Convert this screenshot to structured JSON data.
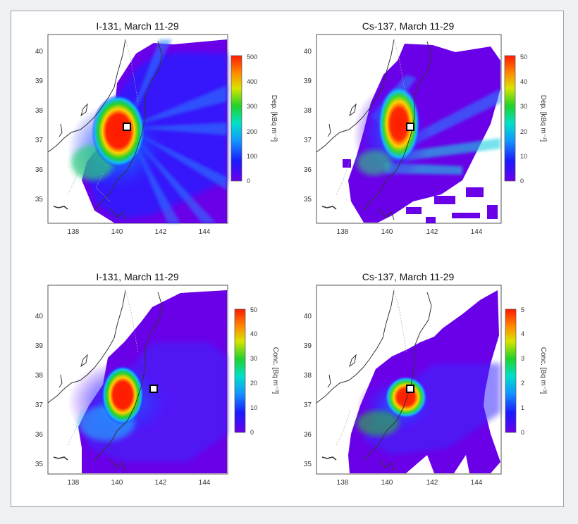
{
  "figure": {
    "panels": [
      {
        "title": "I-131, March 11-29",
        "colorbar_label": "Dep. [kBq m⁻²]",
        "colorbar_ticks": [
          "0",
          "100",
          "200",
          "300",
          "400",
          "500"
        ],
        "x_ticks": [
          "138",
          "140",
          "142",
          "144"
        ],
        "y_ticks": [
          "35",
          "36",
          "37",
          "38",
          "39",
          "40"
        ]
      },
      {
        "title": "Cs-137, March 11-29",
        "colorbar_label": "Dep. [kBq m⁻²]",
        "colorbar_ticks": [
          "0",
          "10",
          "20",
          "30",
          "40",
          "50"
        ],
        "x_ticks": [
          "138",
          "140",
          "142",
          "144"
        ],
        "y_ticks": [
          "35",
          "36",
          "37",
          "38",
          "39",
          "40"
        ]
      },
      {
        "title": "I-131, March 11-29",
        "colorbar_label": "Conc. [Bq m⁻³]",
        "colorbar_ticks": [
          "0",
          "10",
          "20",
          "30",
          "40",
          "50"
        ],
        "x_ticks": [
          "138",
          "140",
          "142",
          "144"
        ],
        "y_ticks": [
          "35",
          "36",
          "37",
          "38",
          "39",
          "40"
        ]
      },
      {
        "title": "Cs-137, March 11-29",
        "colorbar_label": "Conc. [Bq m⁻³]",
        "colorbar_ticks": [
          "0",
          "1",
          "2",
          "3",
          "4",
          "5"
        ],
        "x_ticks": [
          "138",
          "140",
          "142",
          "144"
        ],
        "y_ticks": [
          "35",
          "36",
          "37",
          "38",
          "39",
          "40"
        ]
      }
    ]
  },
  "chart_data": [
    {
      "type": "heatmap",
      "title": "I-131, March 11-29",
      "xlim": [
        137,
        145
      ],
      "ylim": [
        34.5,
        40.5
      ],
      "x_ticks": [
        138,
        140,
        142,
        144
      ],
      "y_ticks": [
        35,
        36,
        37,
        38,
        39,
        40
      ],
      "colorbar": {
        "label": "Dep. [kBq m⁻²]",
        "range": [
          0,
          500
        ],
        "ticks": [
          0,
          100,
          200,
          300,
          400,
          500
        ]
      },
      "source_location": [
        141.0,
        37.4
      ],
      "max_region": "red plume centred on source, 140.2-141.2 E, 36.5-38.3 N"
    },
    {
      "type": "heatmap",
      "title": "Cs-137, March 11-29",
      "xlim": [
        137,
        145
      ],
      "ylim": [
        34.5,
        40.5
      ],
      "x_ticks": [
        138,
        140,
        142,
        144
      ],
      "y_ticks": [
        35,
        36,
        37,
        38,
        39,
        40
      ],
      "colorbar": {
        "label": "Dep. [kBq m⁻²]",
        "range": [
          0,
          50
        ],
        "ticks": [
          0,
          10,
          20,
          30,
          40,
          50
        ]
      },
      "source_location": [
        141.0,
        37.4
      ],
      "max_region": "red patch 140.3-141.3 E, 36.7-38.4 N with cyan streaks to the east"
    },
    {
      "type": "heatmap",
      "title": "I-131, March 11-29",
      "xlim": [
        137,
        145
      ],
      "ylim": [
        34.5,
        40.5
      ],
      "x_ticks": [
        138,
        140,
        142,
        144
      ],
      "y_ticks": [
        35,
        36,
        37,
        38,
        39,
        40
      ],
      "colorbar": {
        "label": "Conc. [Bq m⁻³]",
        "range": [
          0,
          50
        ],
        "ticks": [
          0,
          10,
          20,
          30,
          40,
          50
        ]
      },
      "source_location": [
        141.0,
        37.4
      ],
      "max_region": "red core 140.5-141.4 E, 36.3-37.9 N"
    },
    {
      "type": "heatmap",
      "title": "Cs-137, March 11-29",
      "xlim": [
        137,
        145
      ],
      "ylim": [
        34.5,
        40.5
      ],
      "x_ticks": [
        138,
        140,
        142,
        144
      ],
      "y_ticks": [
        35,
        36,
        37,
        38,
        39,
        40
      ],
      "colorbar": {
        "label": "Conc. [Bq m⁻³]",
        "range": [
          0,
          5
        ],
        "ticks": [
          0,
          1,
          2,
          3,
          4,
          5
        ]
      },
      "source_location": [
        141.0,
        37.4
      ],
      "max_region": "red core 140.4-141.5 E, 36.5-37.8 N"
    }
  ]
}
